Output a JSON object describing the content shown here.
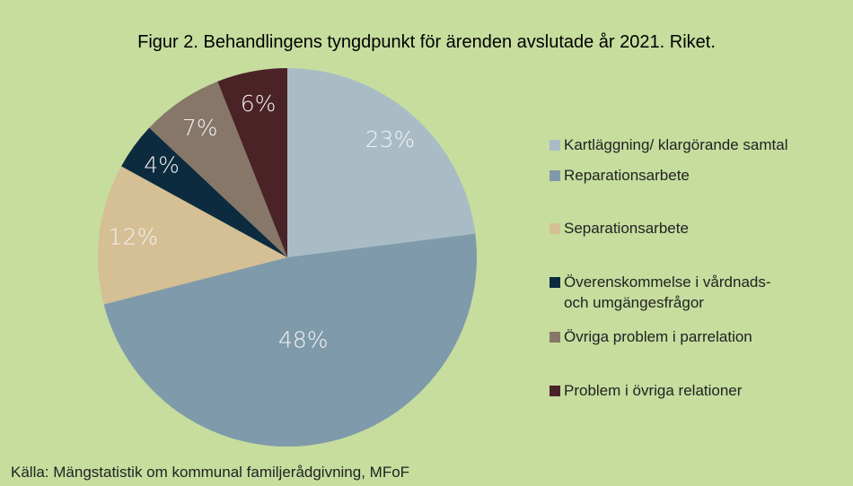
{
  "chart_data": {
    "type": "pie",
    "title": "Figur 2. Behandlingens tyngdpunkt för ärenden avslutade år 2021. Riket.",
    "categories": [
      "Kartläggning/ klargörande samtal",
      "Reparationsarbete",
      "Separationsarbete",
      "Överenskommelse i vårdnads- och umgängesfrågor",
      "Övriga problem i parrelation",
      "Problem i övriga relationer"
    ],
    "values": [
      23,
      48,
      12,
      4,
      7,
      6
    ],
    "value_labels": [
      "23%",
      "48%",
      "12%",
      "4%",
      "7%",
      "6%"
    ],
    "colors": [
      "#a9bcc6",
      "#7f9aab",
      "#d5bf94",
      "#0d2b3f",
      "#877769",
      "#4a2327"
    ],
    "legend": "right",
    "source": "Källa: Mängstatistik om kommunal familjerådgivning, MFoF"
  }
}
